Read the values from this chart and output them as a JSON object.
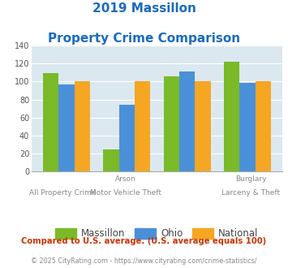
{
  "title_line1": "2019 Massillon",
  "title_line2": "Property Crime Comparison",
  "title_color": "#1a6bbd",
  "massillon": [
    109,
    25,
    106,
    122
  ],
  "ohio": [
    97,
    74,
    111,
    99
  ],
  "national": [
    100,
    100,
    100,
    100
  ],
  "massillon_color": "#7aba28",
  "ohio_color": "#4a90d9",
  "national_color": "#f5a623",
  "ylim": [
    0,
    140
  ],
  "yticks": [
    0,
    20,
    40,
    60,
    80,
    100,
    120,
    140
  ],
  "plot_bg": "#dce8f0",
  "top_labels": [
    "",
    "Arson",
    "",
    "Burglary"
  ],
  "bot_labels": [
    "All Property Crime",
    "Motor Vehicle Theft",
    "",
    "Larceny & Theft"
  ],
  "footer_note": "Compared to U.S. average. (U.S. average equals 100)",
  "footer_color": "#cc3300",
  "copyright": "© 2025 CityRating.com - https://www.cityrating.com/crime-statistics/",
  "copyright_color": "#888888",
  "legend_labels": [
    "Massillon",
    "Ohio",
    "National"
  ]
}
